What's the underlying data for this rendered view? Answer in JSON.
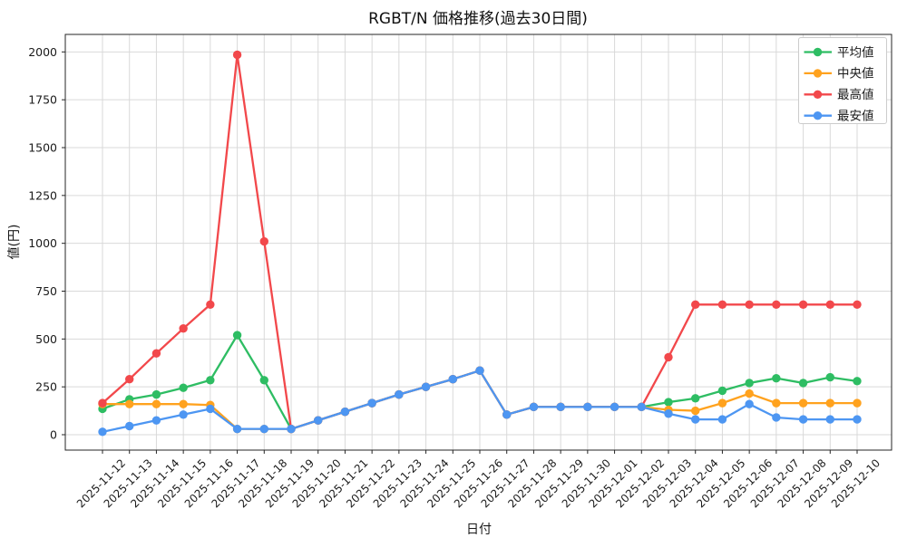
{
  "chart_data": {
    "type": "line",
    "title": "RGBT/N 価格推移(過去30日間)",
    "xlabel": "日付",
    "ylabel": "値(円)",
    "grid": true,
    "legend_position": "upper right",
    "ylim": [
      -80,
      2090
    ],
    "yticks": [
      0,
      250,
      500,
      750,
      1000,
      1250,
      1500,
      1750,
      2000
    ],
    "x": [
      "2025-11-12",
      "2025-11-13",
      "2025-11-14",
      "2025-11-15",
      "2025-11-16",
      "2025-11-17",
      "2025-11-18",
      "2025-11-19",
      "2025-11-20",
      "2025-11-21",
      "2025-11-22",
      "2025-11-23",
      "2025-11-24",
      "2025-11-25",
      "2025-11-26",
      "2025-11-27",
      "2025-11-28",
      "2025-11-29",
      "2025-11-30",
      "2025-12-01",
      "2025-12-02",
      "2025-12-03",
      "2025-12-04",
      "2025-12-05",
      "2025-12-06",
      "2025-12-07",
      "2025-12-08",
      "2025-12-09",
      "2025-12-10"
    ],
    "series": [
      {
        "key": "average",
        "name": "平均値",
        "color": "#2EBD63",
        "values": [
          135,
          185,
          210,
          245,
          285,
          520,
          285,
          30,
          75,
          120,
          165,
          210,
          250,
          290,
          335,
          105,
          145,
          145,
          145,
          145,
          145,
          170,
          190,
          230,
          270,
          295,
          270,
          300,
          280
        ]
      },
      {
        "key": "median",
        "name": "中央値",
        "color": "#FFA21E",
        "values": [
          160,
          160,
          160,
          160,
          155,
          30,
          30,
          30,
          75,
          120,
          165,
          210,
          250,
          290,
          335,
          105,
          145,
          145,
          145,
          145,
          145,
          130,
          125,
          165,
          215,
          165,
          165,
          165,
          165
        ]
      },
      {
        "key": "max",
        "name": "最高値",
        "color": "#F2484B",
        "values": [
          165,
          290,
          425,
          555,
          680,
          1985,
          1010,
          30,
          75,
          120,
          165,
          210,
          250,
          290,
          335,
          105,
          145,
          145,
          145,
          145,
          145,
          405,
          680,
          680,
          680,
          680,
          680,
          680,
          680
        ]
      },
      {
        "key": "min",
        "name": "最安値",
        "color": "#4D96F2",
        "values": [
          15,
          45,
          75,
          105,
          135,
          30,
          30,
          30,
          75,
          120,
          165,
          210,
          250,
          290,
          335,
          105,
          145,
          145,
          145,
          145,
          145,
          110,
          80,
          80,
          160,
          90,
          80,
          80,
          80
        ]
      }
    ],
    "style": {
      "grid_color": "#d9d9d9",
      "spine_color": "#262626",
      "text_color": "#1a1a1a",
      "legend_border_color": "#cccccc",
      "background": "#ffffff"
    }
  }
}
